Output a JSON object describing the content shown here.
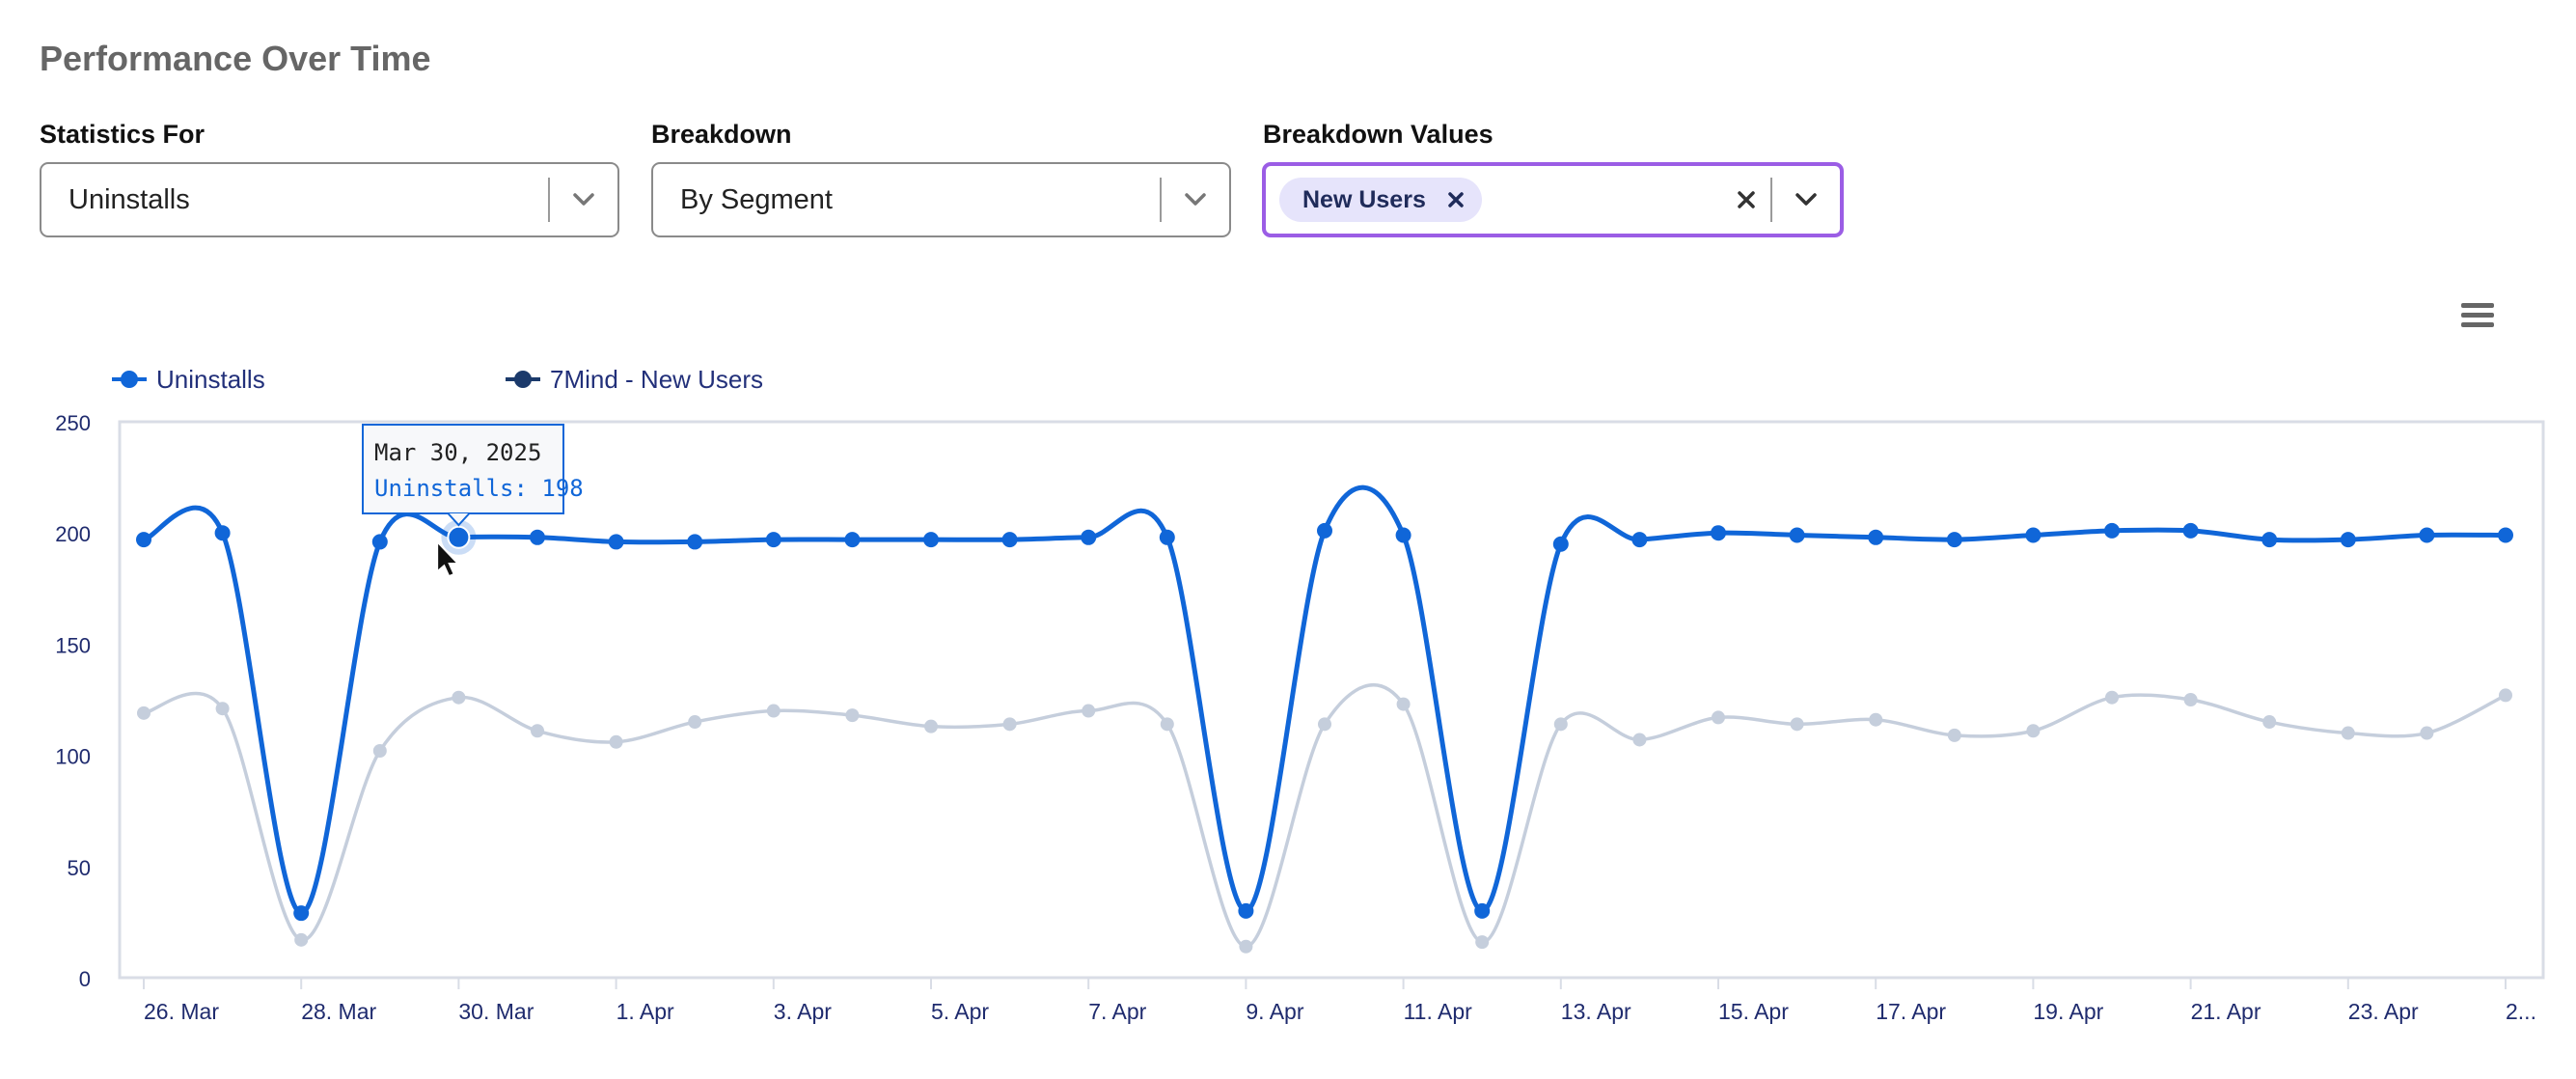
{
  "page_title": "Performance Over Time",
  "filters": {
    "statistics_for": {
      "label": "Statistics For",
      "value": "Uninstalls"
    },
    "breakdown": {
      "label": "Breakdown",
      "value": "By Segment"
    },
    "breakdown_values": {
      "label": "Breakdown Values",
      "chips": [
        "New Users"
      ]
    }
  },
  "colors": {
    "series_primary": "#1066d8",
    "series_secondary": "#c5cedc",
    "axis_text": "#1f2b6e",
    "focus_border": "#9b5de5"
  },
  "icons": {
    "dropdown": "chevron-down-icon",
    "remove_chip": "close-icon",
    "clear": "close-icon",
    "chart_menu": "hamburger-menu-icon"
  },
  "chart_data": {
    "type": "line",
    "x": [
      "26. Mar",
      "27. Mar",
      "28. Mar",
      "29. Mar",
      "30. Mar",
      "31. Mar",
      "1. Apr",
      "2. Apr",
      "3. Apr",
      "4. Apr",
      "5. Apr",
      "6. Apr",
      "7. Apr",
      "8. Apr",
      "9. Apr",
      "10. Apr",
      "11. Apr",
      "12. Apr",
      "13. Apr",
      "14. Apr",
      "15. Apr",
      "16. Apr",
      "17. Apr",
      "18. Apr",
      "19. Apr",
      "20. Apr",
      "21. Apr",
      "22. Apr",
      "23. Apr",
      "24. Apr",
      "25. Apr"
    ],
    "tick_labels": [
      "26. Mar",
      "28. Mar",
      "30. Mar",
      "1. Apr",
      "3. Apr",
      "5. Apr",
      "7. Apr",
      "9. Apr",
      "11. Apr",
      "13. Apr",
      "15. Apr",
      "17. Apr",
      "19. Apr",
      "21. Apr",
      "23. Apr",
      "2..."
    ],
    "series": [
      {
        "name": "Uninstalls",
        "color": "#1066d8",
        "values": [
          197,
          200,
          29,
          196,
          198,
          198,
          196,
          196,
          197,
          197,
          197,
          197,
          198,
          198,
          30,
          201,
          199,
          30,
          195,
          197,
          200,
          199,
          198,
          197,
          199,
          201,
          201,
          197,
          197,
          199,
          199
        ]
      },
      {
        "name": "7Mind - New Users",
        "color": "#c5cedc",
        "values": [
          119,
          121,
          17,
          102,
          126,
          111,
          106,
          115,
          120,
          118,
          113,
          114,
          120,
          114,
          14,
          114,
          123,
          16,
          114,
          107,
          117,
          114,
          116,
          109,
          111,
          126,
          125,
          115,
          110,
          110,
          127
        ]
      }
    ],
    "ylim": [
      0,
      250
    ],
    "yticks": [
      0,
      50,
      100,
      150,
      200,
      250
    ],
    "grid": false,
    "legend_position": "top-left",
    "tooltip": {
      "date": "Mar 30, 2025",
      "text": "Uninstalls: 198",
      "index": 4
    }
  }
}
